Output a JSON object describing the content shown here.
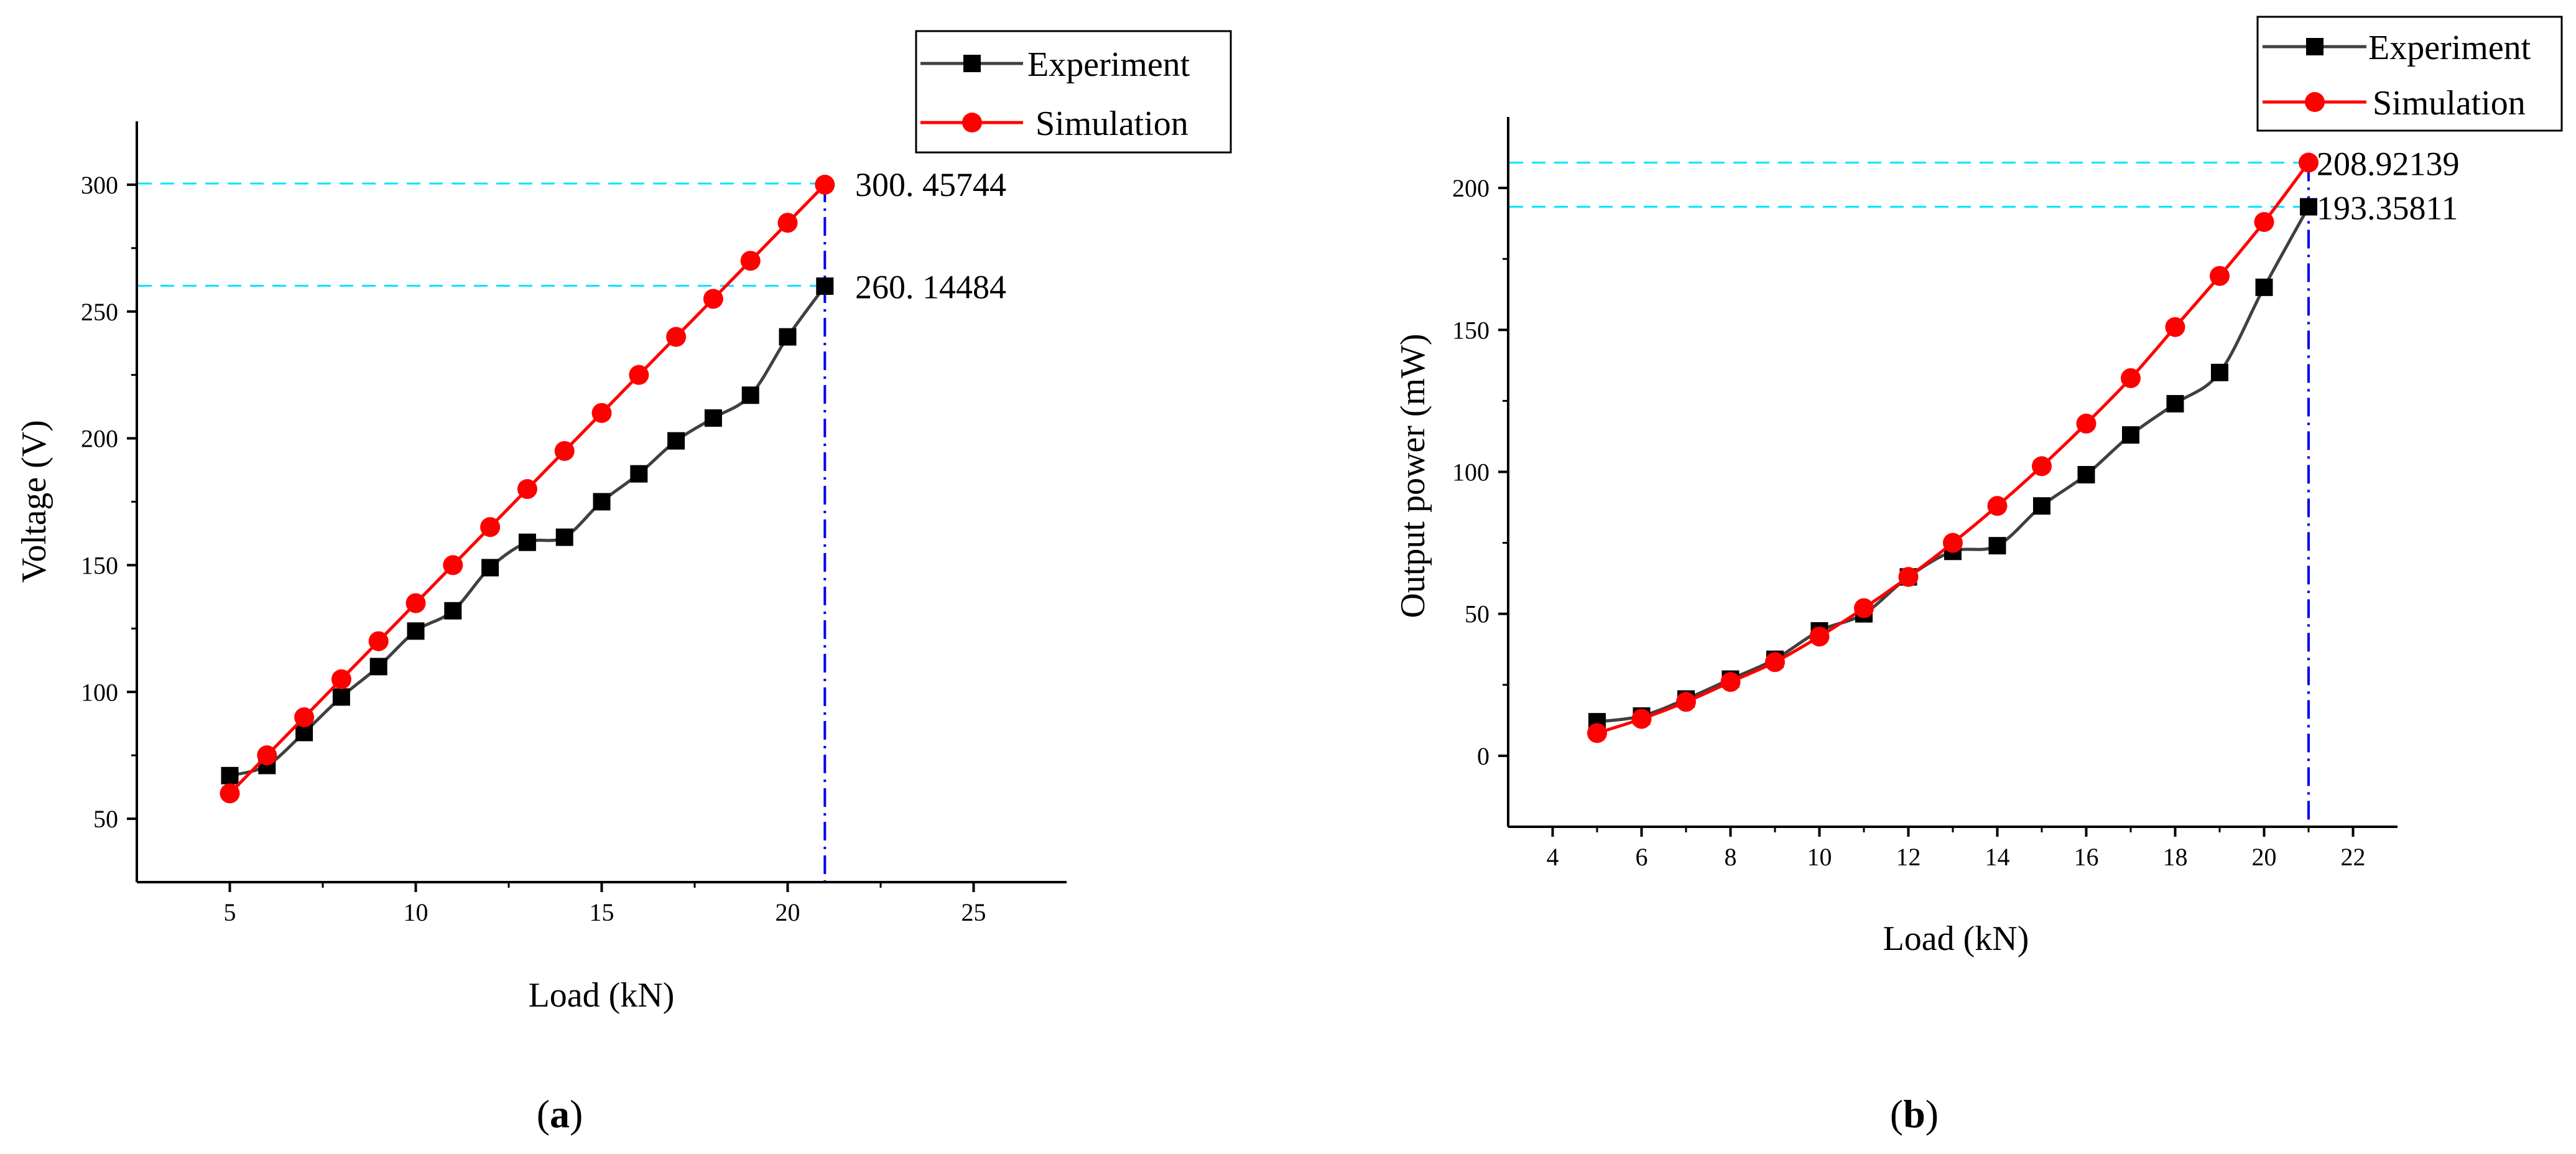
{
  "chart_data": [
    {
      "type": "line",
      "panel": "a",
      "xlabel": "Load (kN)",
      "ylabel": "Voltage (V)",
      "xlim": [
        2.5,
        27.5
      ],
      "ylim": [
        25,
        325
      ],
      "xticks": [
        5,
        10,
        15,
        20,
        25
      ],
      "yticks": [
        50,
        100,
        150,
        200,
        250,
        300
      ],
      "x": [
        5,
        6,
        7,
        8,
        9,
        10,
        11,
        12,
        13,
        14,
        15,
        16,
        17,
        18,
        19,
        20,
        21
      ],
      "series": [
        {
          "name": "Experiment",
          "color": "#404040",
          "marker": "square",
          "values": [
            67,
            71,
            84,
            98,
            110,
            124,
            132,
            149,
            159,
            161,
            175,
            186,
            199,
            208,
            217,
            240,
            260
          ]
        },
        {
          "name": "Simulation",
          "color": "#ff0000",
          "marker": "circle",
          "values": [
            60,
            75,
            90,
            105,
            120,
            135,
            150,
            165,
            180,
            195,
            210,
            225,
            240,
            255,
            270,
            285,
            300
          ]
        }
      ],
      "annotations": [
        {
          "text": "300. 45744",
          "y": 300.45744
        },
        {
          "text": "260. 14484",
          "y": 260.14484
        }
      ],
      "vline_x": 21
    },
    {
      "type": "line",
      "panel": "b",
      "xlabel": "Load (kN)",
      "ylabel": "Output power (mW)",
      "xlim": [
        3,
        23
      ],
      "ylim": [
        -25,
        225
      ],
      "xticks": [
        4,
        6,
        8,
        10,
        12,
        14,
        16,
        18,
        20,
        22
      ],
      "yticks": [
        0,
        50,
        100,
        150,
        200
      ],
      "x": [
        5,
        6,
        7,
        8,
        9,
        10,
        11,
        12,
        13,
        14,
        15,
        16,
        17,
        18,
        19,
        20,
        21
      ],
      "series": [
        {
          "name": "Experiment",
          "color": "#404040",
          "marker": "square",
          "values": [
            12,
            14,
            20,
            27,
            34,
            44,
            50,
            63,
            72,
            74,
            88,
            99,
            113,
            124,
            135,
            165,
            193.36
          ]
        },
        {
          "name": "Simulation",
          "color": "#ff0000",
          "marker": "circle",
          "values": [
            8,
            13,
            19,
            26,
            33,
            42,
            52,
            63,
            75,
            88,
            102,
            117,
            133,
            151,
            169,
            188,
            208.92
          ]
        }
      ],
      "annotations": [
        {
          "text": "208.92139",
          "y": 208.92139
        },
        {
          "text": "193.35811",
          "y": 193.35811
        }
      ],
      "vline_x": 21
    }
  ],
  "captions": {
    "a": "a",
    "b": "b"
  },
  "colors": {
    "guide": "#00e5ff",
    "vline": "#0000ee"
  }
}
